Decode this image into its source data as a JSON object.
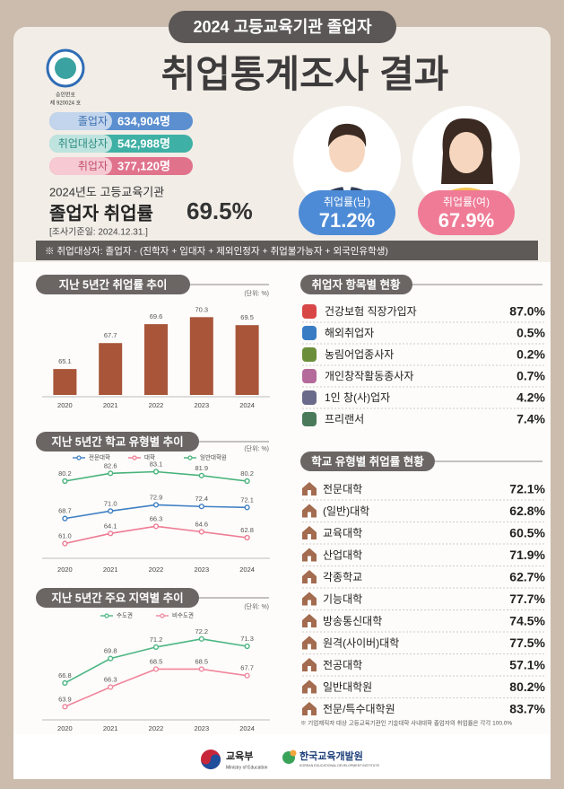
{
  "header": {
    "badge": "2024 고등교육기관 졸업자",
    "title": "취업통계조사 결과",
    "approval_label": "승인번호",
    "approval_number": "제 920024 호"
  },
  "summary": {
    "stats": [
      {
        "label": "졸업자",
        "value": "634,904명"
      },
      {
        "label": "취업대상자",
        "value": "542,988명"
      },
      {
        "label": "취업자",
        "value": "377,120명"
      }
    ],
    "year_line": "2024년도 고등교육기관",
    "rate_label": "졸업자 취업률",
    "rate": "69.5%",
    "date": "[조사기준일: 2024.12.31.]"
  },
  "gender": [
    {
      "label": "취업률(남)",
      "value": "71.2%"
    },
    {
      "label": "취업률(여)",
      "value": "67.9%"
    }
  ],
  "note": "※ 취업대상자: 졸업자 - (진학자 + 입대자 + 제외인정자 + 취업불가능자 + 외국인유학생)",
  "chart_data": [
    {
      "type": "bar",
      "title": "지난 5년간 취업률 추이",
      "unit": "(단위: %)",
      "categories": [
        "2020",
        "2021",
        "2022",
        "2023",
        "2024"
      ],
      "values": [
        65.1,
        67.7,
        69.6,
        70.3,
        69.5
      ],
      "color": "#a8553a",
      "ylim": [
        62.5,
        71.5
      ]
    },
    {
      "type": "line",
      "title": "지난 5년간 학교 유형별 추이",
      "unit": "(단위: %)",
      "categories": [
        "2020",
        "2021",
        "2022",
        "2023",
        "2024"
      ],
      "series": [
        {
          "name": "전문대학",
          "color": "#3f7fc4",
          "values": [
            68.7,
            71.0,
            72.9,
            72.4,
            72.1
          ],
          "value_labels": [
            "68.7",
            "71.0",
            "72.9",
            "72.4",
            "72.1"
          ]
        },
        {
          "name": "대학",
          "color": "#ee7a93",
          "values": [
            61.0,
            64.1,
            66.3,
            64.6,
            62.8
          ],
          "value_labels": [
            "61.0",
            "64.1",
            "66.3",
            "64.6",
            "62.8"
          ]
        },
        {
          "name": "일반대학원",
          "color": "#47b27a",
          "values": [
            80.2,
            82.6,
            83.1,
            81.9,
            80.2
          ]
        }
      ],
      "ylim": [
        57,
        86
      ]
    },
    {
      "type": "line",
      "title": "지난 5년간 주요 지역별 추이",
      "unit": "(단위: %)",
      "categories": [
        "2020",
        "2021",
        "2022",
        "2023",
        "2024"
      ],
      "series": [
        {
          "name": "수도권",
          "color": "#4cb684",
          "values": [
            66.8,
            69.8,
            71.2,
            72.2,
            71.3
          ]
        },
        {
          "name": "비수도권",
          "color": "#f0869c",
          "values": [
            63.9,
            66.3,
            68.5,
            68.5,
            67.7
          ]
        }
      ],
      "ylim": [
        62.5,
        73.5
      ]
    }
  ],
  "employment_types": {
    "title": "취업자 항목별 현황",
    "rows": [
      [
        "건강보험 직장가입자",
        "87.0%"
      ],
      [
        "해외취업자",
        "0.5%"
      ],
      [
        "농림어업종사자",
        "0.2%"
      ],
      [
        "개인창작활동종사자",
        "0.7%"
      ],
      [
        "1인 창(사)업자",
        "4.2%"
      ],
      [
        "프리랜서",
        "7.4%"
      ]
    ]
  },
  "school_types": {
    "title": "학교 유형별 취업률 현황",
    "rows": [
      [
        "전문대학",
        "72.1%"
      ],
      [
        "(일반)대학",
        "62.8%"
      ],
      [
        "교육대학",
        "60.5%"
      ],
      [
        "산업대학",
        "71.9%"
      ],
      [
        "각종학교",
        "62.7%"
      ],
      [
        "기능대학",
        "77.7%"
      ],
      [
        "방송통신대학",
        "74.5%"
      ],
      [
        "원격(사이버)대학",
        "77.5%"
      ],
      [
        "전공대학",
        "57.1%"
      ],
      [
        "일반대학원",
        "80.2%"
      ],
      [
        "전문/특수대학원",
        "83.7%"
      ]
    ],
    "footnote": "※ 기업재직자 대상 고등교육기관인 기술대학 사내대학 졸업자의 취업률은 각각 100.0%"
  },
  "footer": {
    "ministry": "교육부",
    "ministry_en": "Ministry of Education",
    "institute": "한국교육개발원",
    "institute_en": "KOREAN EDUCATIONAL DEVELOPMENT INSTITUTE"
  }
}
